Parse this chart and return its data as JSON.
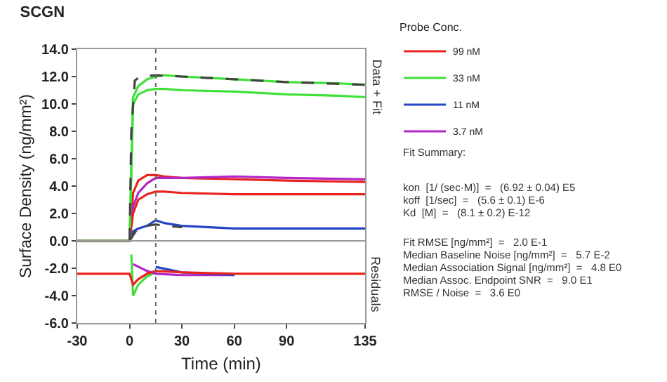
{
  "chart_data": {
    "type": "line",
    "title": "SCGN",
    "xlabel": "Time (min)",
    "ylabel": "Surface Density (ng/mm²)",
    "legend_title": "Probe Conc.",
    "xlim": [
      -30,
      135
    ],
    "xticks": [
      -30,
      0,
      30,
      60,
      90,
      135
    ],
    "ylim": [
      -6,
      14
    ],
    "yticks": [
      {
        "value": -6,
        "label": "-6.0"
      },
      {
        "value": -4,
        "label": "-4.0"
      },
      {
        "value": -2,
        "label": "-2.0"
      },
      {
        "value": 0,
        "label": "0.0"
      },
      {
        "value": 2,
        "label": "2.0"
      },
      {
        "value": 4,
        "label": "4.0"
      },
      {
        "value": 6,
        "label": "6.0"
      },
      {
        "value": 8,
        "label": "8.0"
      },
      {
        "value": 10,
        "label": "10.0"
      },
      {
        "value": 12,
        "label": "12.0"
      },
      {
        "value": 14,
        "label": "14.0"
      }
    ],
    "grid": false,
    "legend": "right",
    "marker": "none",
    "line_style": "solid",
    "series": [
      {
        "name": "99 nM",
        "color": "#e8231f",
        "x": [
          -30,
          -15,
          0,
          2,
          5,
          10,
          15,
          20,
          30,
          60,
          90,
          135
        ],
        "values": [
          0,
          0,
          0,
          3.5,
          4.4,
          4.8,
          4.8,
          4.7,
          4.6,
          4.5,
          4.4,
          4.3
        ]
      },
      {
        "name": "33 nM",
        "color": "#3fe03a",
        "x": [
          -30,
          -15,
          0,
          2,
          5,
          10,
          15,
          20,
          30,
          45,
          60,
          90,
          120,
          135
        ],
        "values": [
          0,
          0,
          0,
          10.5,
          11.3,
          11.8,
          12.0,
          12.1,
          12.0,
          11.9,
          11.8,
          11.6,
          11.5,
          11.4
        ]
      },
      {
        "name": "11 nM",
        "color": "#2445c8",
        "x": [
          -30,
          -15,
          0,
          2,
          5,
          10,
          15,
          20,
          30,
          60,
          90,
          135
        ],
        "values": [
          0,
          0,
          0,
          0.7,
          0.9,
          1.1,
          1.5,
          1.3,
          1.1,
          0.9,
          0.9,
          0.9
        ]
      },
      {
        "name": "3.7 nM",
        "color": "#b326c8",
        "x": [
          0,
          2,
          5,
          10,
          15,
          30,
          60,
          90,
          135
        ],
        "values": [
          0,
          2.5,
          3.5,
          4.2,
          4.6,
          4.6,
          4.7,
          4.6,
          4.5
        ]
      },
      {
        "color": "#e8231f",
        "x": [
          -30,
          0,
          2,
          5,
          10,
          15,
          20,
          30,
          60,
          90,
          135
        ],
        "values": [
          0,
          0,
          2,
          3,
          3.4,
          3.6,
          3.6,
          3.5,
          3.4,
          3.4,
          3.4
        ]
      },
      {
        "color": "#3fe03a",
        "x": [
          -30,
          0,
          2,
          5,
          10,
          15,
          20,
          30,
          60,
          90,
          120,
          135
        ],
        "values": [
          0,
          0,
          10,
          10.7,
          11,
          11.1,
          11.1,
          11,
          10.9,
          10.7,
          10.6,
          10.5
        ]
      },
      {
        "color": "#444444",
        "line_style": "dashed",
        "x": [
          0,
          1,
          3,
          6,
          15,
          30,
          60,
          90,
          135
        ],
        "values": [
          0,
          8,
          11.7,
          12,
          12.1,
          12,
          11.8,
          11.6,
          11.4
        ]
      },
      {
        "color": "#444444",
        "line_style": "dashed",
        "x": [
          0,
          5,
          10,
          15,
          20,
          30
        ],
        "values": [
          0,
          1,
          1.1,
          1.2,
          1.1,
          1
        ]
      },
      {
        "color": "#3fe03a",
        "x": [
          1,
          2,
          5,
          10,
          15
        ],
        "values": [
          -1,
          -4,
          -3.2,
          -2.6,
          -2.3
        ]
      },
      {
        "color": "#b326c8",
        "x": [
          2,
          10,
          15,
          30,
          60
        ],
        "values": [
          -1.7,
          -2.2,
          -2.4,
          -2.5,
          -2.5
        ]
      },
      {
        "color": "#2445c8",
        "x": [
          15,
          30,
          60
        ],
        "values": [
          -1.9,
          -2.3,
          -2.5
        ]
      },
      {
        "color": "#e8231f",
        "x": [
          -30,
          -15,
          0,
          2,
          5,
          10,
          15,
          30,
          60,
          90,
          135
        ],
        "values": [
          -2.4,
          -2.4,
          -2.4,
          -3.2,
          -2.8,
          -2.4,
          -2.2,
          -2.3,
          -2.4,
          -2.4,
          -2.4
        ]
      }
    ],
    "ref_lines": [
      {
        "axis": "x",
        "value": 15,
        "color": "#666666",
        "line_style": "dotted"
      },
      {
        "axis": "y",
        "value": 0,
        "color": "#999999",
        "line_style": "solid"
      }
    ],
    "annotations": [
      "Data + Fit",
      "Residuals",
      "Fit Summary:",
      "kon  [1/ (sec·M)]  =   (6.92 ± 0.04) E5",
      "koff  [1/sec]  =   (5.6 ± 0.1) E-6",
      "Kd  [M]  =   (8.1 ± 0.2) E-12",
      "Fit RMSE [ng/mm²]  =   2.0 E-1",
      "Median Baseline Noise [ng/mm²]  =   5.7 E-2",
      "Median Association Signal [ng/mm²]  =   4.8 E0",
      "Median Assoc. Endpoint SNR  =   9.0 E1",
      "RMSE / Noise  =   3.6 E0"
    ]
  }
}
